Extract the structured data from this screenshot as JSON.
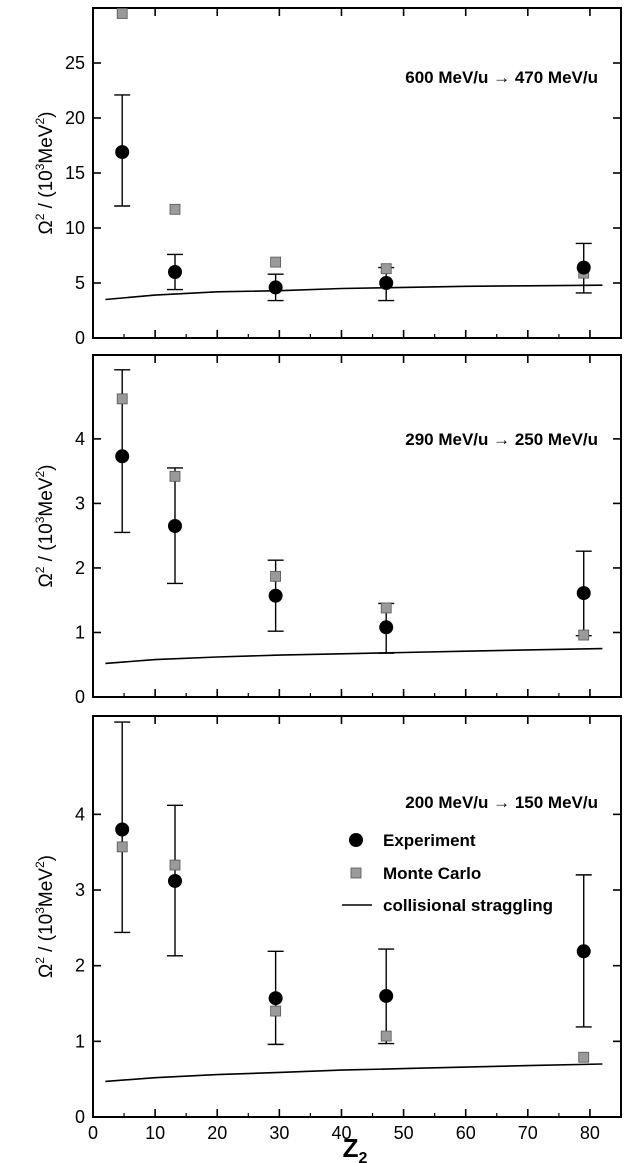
{
  "chart_data": [
    {
      "type": "scatter",
      "title": "600 MeV/u → 470 MeV/u",
      "ylabel_prefix": "Ω",
      "ylabel_mid": " / (10",
      "ylabel_unit": "MeV",
      "ylabel_end": ")",
      "ylim": [
        0,
        30
      ],
      "yticks": [
        0,
        5,
        10,
        15,
        20,
        25
      ],
      "xlim": [
        0,
        85
      ],
      "series": [
        {
          "name": "Experiment",
          "marker": "circle",
          "color": "#000000",
          "points": [
            {
              "x": 4.7,
              "y": 16.9,
              "lo": 12.0,
              "hi": 22.1
            },
            {
              "x": 13.2,
              "y": 6.0,
              "lo": 4.4,
              "hi": 7.6
            },
            {
              "x": 29.4,
              "y": 4.6,
              "lo": 3.4,
              "hi": 5.8
            },
            {
              "x": 47.2,
              "y": 5.0,
              "lo": 3.4,
              "hi": 6.4
            },
            {
              "x": 79.0,
              "y": 6.4,
              "lo": 4.1,
              "hi": 8.6
            }
          ]
        },
        {
          "name": "Monte Carlo",
          "marker": "square",
          "color": "#9a9a9a",
          "points": [
            {
              "x": 4.7,
              "y": 29.5
            },
            {
              "x": 13.2,
              "y": 11.7
            },
            {
              "x": 29.4,
              "y": 6.9
            },
            {
              "x": 47.2,
              "y": 6.3
            },
            {
              "x": 79.0,
              "y": 5.9
            }
          ]
        },
        {
          "name": "collisional straggling",
          "marker": "line",
          "color": "#000000",
          "points": [
            {
              "x": 2,
              "y": 3.5
            },
            {
              "x": 10,
              "y": 3.9
            },
            {
              "x": 20,
              "y": 4.2
            },
            {
              "x": 30,
              "y": 4.3
            },
            {
              "x": 40,
              "y": 4.5
            },
            {
              "x": 50,
              "y": 4.6
            },
            {
              "x": 60,
              "y": 4.7
            },
            {
              "x": 70,
              "y": 4.75
            },
            {
              "x": 82,
              "y": 4.8
            }
          ]
        }
      ]
    },
    {
      "type": "scatter",
      "title": "290 MeV/u → 250 MeV/u",
      "ylabel_prefix": "Ω",
      "ylabel_mid": " / (10",
      "ylabel_unit": "MeV",
      "ylabel_end": ")",
      "ylim": [
        0,
        5.3
      ],
      "yticks": [
        0,
        1,
        2,
        3,
        4
      ],
      "xlim": [
        0,
        85
      ],
      "series": [
        {
          "name": "Experiment",
          "marker": "circle",
          "color": "#000000",
          "points": [
            {
              "x": 4.7,
              "y": 3.73,
              "lo": 2.55,
              "hi": 5.07
            },
            {
              "x": 13.2,
              "y": 2.65,
              "lo": 1.76,
              "hi": 3.55
            },
            {
              "x": 29.4,
              "y": 1.57,
              "lo": 1.02,
              "hi": 2.12
            },
            {
              "x": 47.2,
              "y": 1.08,
              "lo": 0.68,
              "hi": 1.45
            },
            {
              "x": 79.0,
              "y": 1.61,
              "lo": 0.95,
              "hi": 2.26
            }
          ]
        },
        {
          "name": "Monte Carlo",
          "marker": "square",
          "color": "#9a9a9a",
          "points": [
            {
              "x": 4.7,
              "y": 4.62
            },
            {
              "x": 13.2,
              "y": 3.42
            },
            {
              "x": 29.4,
              "y": 1.87
            },
            {
              "x": 47.2,
              "y": 1.38
            },
            {
              "x": 79.0,
              "y": 0.96
            }
          ]
        },
        {
          "name": "collisional straggling",
          "marker": "line",
          "color": "#000000",
          "points": [
            {
              "x": 2,
              "y": 0.52
            },
            {
              "x": 10,
              "y": 0.58
            },
            {
              "x": 20,
              "y": 0.62
            },
            {
              "x": 30,
              "y": 0.65
            },
            {
              "x": 40,
              "y": 0.67
            },
            {
              "x": 50,
              "y": 0.69
            },
            {
              "x": 60,
              "y": 0.71
            },
            {
              "x": 70,
              "y": 0.73
            },
            {
              "x": 82,
              "y": 0.75
            }
          ]
        }
      ]
    },
    {
      "type": "scatter",
      "title": "200 MeV/u → 150 MeV/u",
      "ylabel_prefix": "Ω",
      "ylabel_mid": " / (10",
      "ylabel_unit": "MeV",
      "ylabel_end": ")",
      "ylim": [
        0,
        5.3
      ],
      "yticks": [
        0,
        1,
        2,
        3,
        4
      ],
      "xlim": [
        0,
        85
      ],
      "xticks": [
        0,
        10,
        20,
        30,
        40,
        50,
        60,
        70,
        80
      ],
      "xlabel": "Z",
      "xlabel_sub": "2",
      "legend": {
        "position": "top-right",
        "items": [
          "Experiment",
          "Monte Carlo",
          "collisional straggling"
        ]
      },
      "series": [
        {
          "name": "Experiment",
          "marker": "circle",
          "color": "#000000",
          "points": [
            {
              "x": 4.7,
              "y": 3.8,
              "lo": 2.44,
              "hi": 5.22
            },
            {
              "x": 13.2,
              "y": 3.12,
              "lo": 2.13,
              "hi": 4.12
            },
            {
              "x": 29.4,
              "y": 1.57,
              "lo": 0.96,
              "hi": 2.19
            },
            {
              "x": 47.2,
              "y": 1.6,
              "lo": 0.97,
              "hi": 2.22
            },
            {
              "x": 79.0,
              "y": 2.19,
              "lo": 1.19,
              "hi": 3.2
            }
          ]
        },
        {
          "name": "Monte Carlo",
          "marker": "square",
          "color": "#9a9a9a",
          "points": [
            {
              "x": 4.7,
              "y": 3.57
            },
            {
              "x": 13.2,
              "y": 3.33
            },
            {
              "x": 29.4,
              "y": 1.4
            },
            {
              "x": 47.2,
              "y": 1.07
            },
            {
              "x": 79.0,
              "y": 0.79
            }
          ]
        },
        {
          "name": "collisional straggling",
          "marker": "line",
          "color": "#000000",
          "points": [
            {
              "x": 2,
              "y": 0.47
            },
            {
              "x": 10,
              "y": 0.52
            },
            {
              "x": 20,
              "y": 0.56
            },
            {
              "x": 30,
              "y": 0.59
            },
            {
              "x": 40,
              "y": 0.62
            },
            {
              "x": 50,
              "y": 0.64
            },
            {
              "x": 60,
              "y": 0.66
            },
            {
              "x": 70,
              "y": 0.68
            },
            {
              "x": 82,
              "y": 0.7
            }
          ]
        }
      ]
    }
  ]
}
